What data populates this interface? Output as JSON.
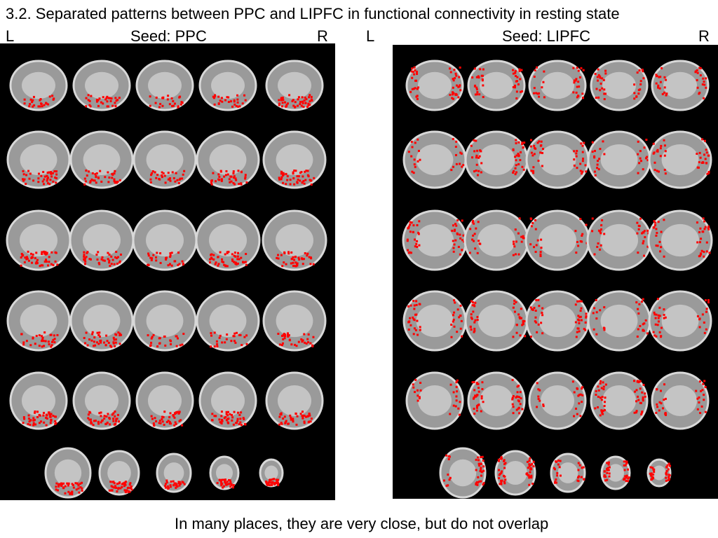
{
  "title": "3.2. Separated patterns between PPC and LIPFC in functional connectivity in resting state",
  "left_panel": {
    "left_label": "L",
    "seed": "Seed: PPC",
    "right_label": "R"
  },
  "right_panel": {
    "left_label": "L",
    "seed": "Seed: LIPFC",
    "right_label": "R"
  },
  "caption": "In many places, they are very close, but do not overlap"
}
